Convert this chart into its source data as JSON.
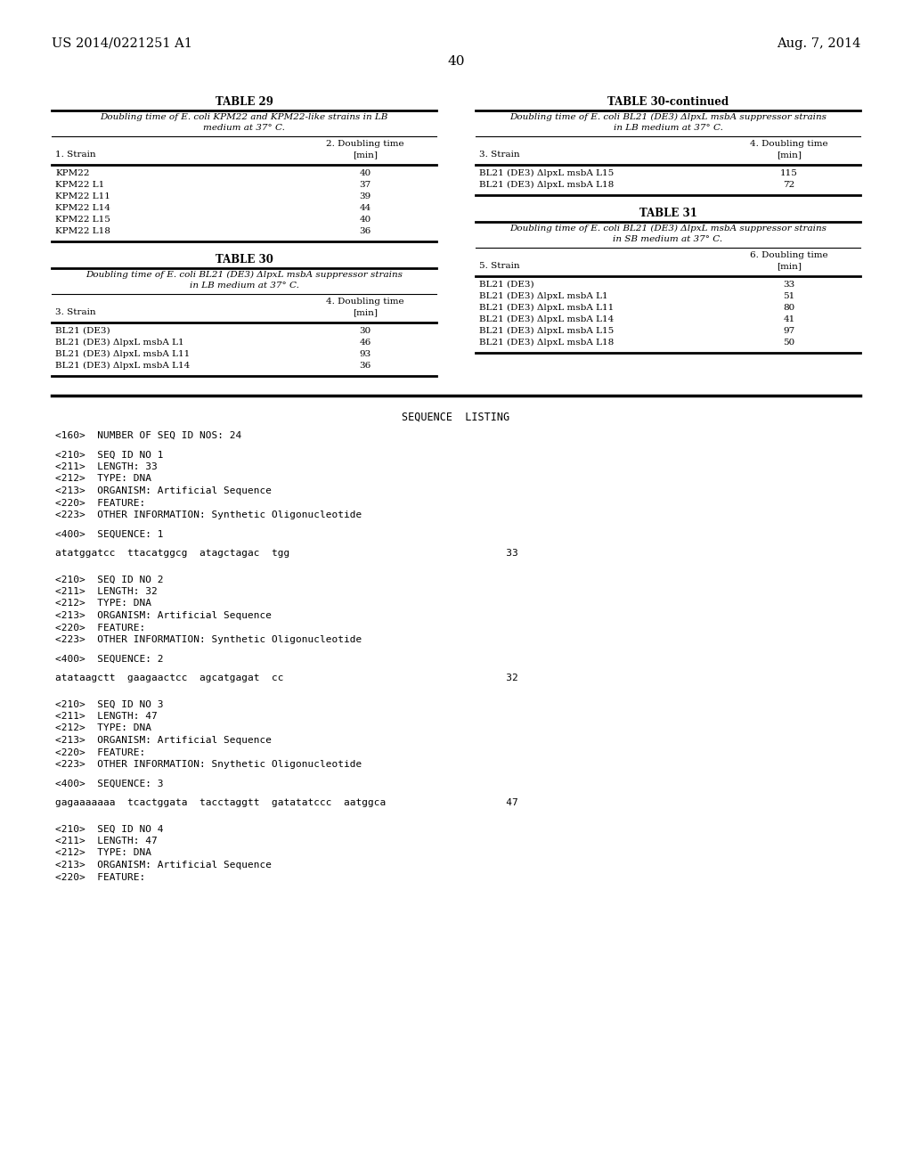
{
  "bg_color": "#ffffff",
  "header_left": "US 2014/0221251 A1",
  "header_right": "Aug. 7, 2014",
  "page_number": "40",
  "table29": {
    "title": "TABLE 29",
    "caption": "Doubling time of E. coli KPM22 and KPM22-like strains in LB\nmedium at 37° C.",
    "col1_header": "1. Strain",
    "col2_header": "2. Doubling time\n[min]",
    "rows": [
      [
        "KPM22",
        "40"
      ],
      [
        "KPM22 L1",
        "37"
      ],
      [
        "KPM22 L11",
        "39"
      ],
      [
        "KPM22 L14",
        "44"
      ],
      [
        "KPM22 L15",
        "40"
      ],
      [
        "KPM22 L18",
        "36"
      ]
    ]
  },
  "table30": {
    "title": "TABLE 30",
    "caption": "Doubling time of E. coli BL21 (DE3) ΔlpxL msbA suppressor strains\nin LB medium at 37° C.",
    "col1_header": "3. Strain",
    "col2_header": "4. Doubling time\n[min]",
    "rows": [
      [
        "BL21 (DE3)",
        "30"
      ],
      [
        "BL21 (DE3) ΔlpxL msbA L1",
        "46"
      ],
      [
        "BL21 (DE3) ΔlpxL msbA L11",
        "93"
      ],
      [
        "BL21 (DE3) ΔlpxL msbA L14",
        "36"
      ]
    ]
  },
  "table30cont": {
    "title": "TABLE 30-continued",
    "caption": "Doubling time of E. coli BL21 (DE3) ΔlpxL msbA suppressor strains\nin LB medium at 37° C.",
    "col1_header": "3. Strain",
    "col2_header": "4. Doubling time\n[min]",
    "rows": [
      [
        "BL21 (DE3) ΔlpxL msbA L15",
        "115"
      ],
      [
        "BL21 (DE3) ΔlpxL msbA L18",
        "72"
      ]
    ]
  },
  "table31": {
    "title": "TABLE 31",
    "caption": "Doubling time of E. coli BL21 (DE3) ΔlpxL msbA suppressor strains\nin SB medium at 37° C.",
    "col1_header": "5. Strain",
    "col2_header": "6. Doubling time\n[min]",
    "rows": [
      [
        "BL21 (DE3)",
        "33"
      ],
      [
        "BL21 (DE3) ΔlpxL msbA L1",
        "51"
      ],
      [
        "BL21 (DE3) ΔlpxL msbA L11",
        "80"
      ],
      [
        "BL21 (DE3) ΔlpxL msbA L14",
        "41"
      ],
      [
        "BL21 (DE3) ΔlpxL msbA L15",
        "97"
      ],
      [
        "BL21 (DE3) ΔlpxL msbA L18",
        "50"
      ]
    ]
  },
  "sequence_listing_title": "SEQUENCE  LISTING",
  "sequence_lines": [
    "<160>  NUMBER OF SEQ ID NOS: 24",
    "",
    "<210>  SEQ ID NO 1",
    "<211>  LENGTH: 33",
    "<212>  TYPE: DNA",
    "<213>  ORGANISM: Artificial Sequence",
    "<220>  FEATURE:",
    "<223>  OTHER INFORMATION: Synthetic Oligonucleotide",
    "",
    "<400>  SEQUENCE: 1",
    "",
    "atatggatcc  ttacatggcg  atagctagac  tgg                                    33",
    "",
    "",
    "<210>  SEQ ID NO 2",
    "<211>  LENGTH: 32",
    "<212>  TYPE: DNA",
    "<213>  ORGANISM: Artificial Sequence",
    "<220>  FEATURE:",
    "<223>  OTHER INFORMATION: Synthetic Oligonucleotide",
    "",
    "<400>  SEQUENCE: 2",
    "",
    "atataagctt  gaagaactcc  agcatgagat  cc                                     32",
    "",
    "",
    "<210>  SEQ ID NO 3",
    "<211>  LENGTH: 47",
    "<212>  TYPE: DNA",
    "<213>  ORGANISM: Artificial Sequence",
    "<220>  FEATURE:",
    "<223>  OTHER INFORMATION: Snythetic Oligonucleotide",
    "",
    "<400>  SEQUENCE: 3",
    "",
    "gagaaaaaaa  tcactggata  tacctaggtt  gatatatccc  aatggca                    47",
    "",
    "",
    "<210>  SEQ ID NO 4",
    "<211>  LENGTH: 47",
    "<212>  TYPE: DNA",
    "<213>  ORGANISM: Artificial Sequence",
    "<220>  FEATURE:"
  ]
}
